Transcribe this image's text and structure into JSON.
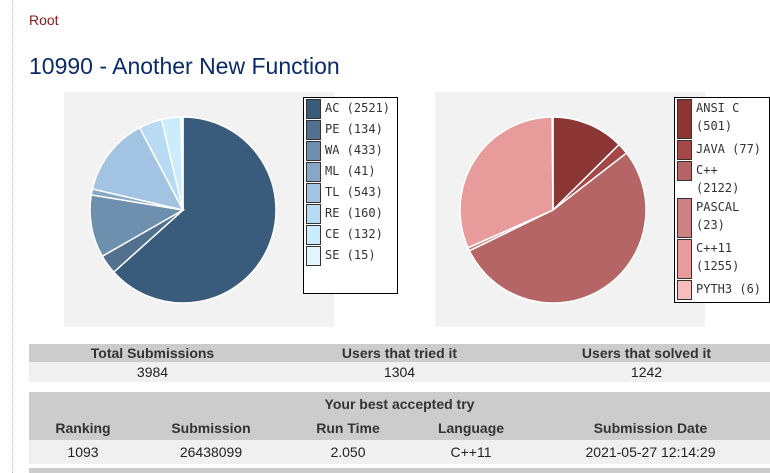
{
  "breadcrumb": "Root",
  "title": "10990 - Another New Function",
  "chart_data": [
    {
      "type": "pie",
      "legend_position": "right",
      "slices": [
        {
          "label": "AC",
          "value": 2521,
          "color": "#3a5c7c"
        },
        {
          "label": "PE",
          "value": 134,
          "color": "#52718f"
        },
        {
          "label": "WA",
          "value": 433,
          "color": "#6e90af"
        },
        {
          "label": "ML",
          "value": 41,
          "color": "#87a7c6"
        },
        {
          "label": "TL",
          "value": 543,
          "color": "#a2c3e1"
        },
        {
          "label": "RE",
          "value": 160,
          "color": "#b8dbf4"
        },
        {
          "label": "CE",
          "value": 132,
          "color": "#cbecfb"
        },
        {
          "label": "SE",
          "value": 15,
          "color": "#e3f6fd"
        }
      ]
    },
    {
      "type": "pie",
      "legend_position": "right",
      "slices": [
        {
          "label": "ANSI C",
          "value": 501,
          "color": "#8b3535"
        },
        {
          "label": "JAVA",
          "value": 77,
          "color": "#a34747"
        },
        {
          "label": "C++",
          "value": 2122,
          "color": "#b56565"
        },
        {
          "label": "PASCAL",
          "value": 23,
          "color": "#cc8282"
        },
        {
          "label": "C++11",
          "value": 1255,
          "color": "#e89b9b"
        },
        {
          "label": "PYTH3",
          "value": 6,
          "color": "#f7bcbc"
        }
      ]
    }
  ],
  "legend1": [
    "AC (2521)",
    "PE (134)",
    "WA (433)",
    "ML (41)",
    "TL (543)",
    "RE (160)",
    "CE (132)",
    "SE (15)"
  ],
  "legend2": [
    "ANSI C\n(501)",
    "JAVA (77)",
    "C++ (2122)",
    "PASCAL\n(23)",
    "C++11\n(1255)",
    "PYTH3 (6)"
  ],
  "stats": {
    "headers": [
      "Total Submissions",
      "Users that tried it",
      "Users that solved it"
    ],
    "values": [
      "3984",
      "1304",
      "1242"
    ]
  },
  "best": {
    "title": "Your best accepted try",
    "headers": [
      "Ranking",
      "Submission",
      "Run Time",
      "Language",
      "Submission Date"
    ],
    "values": [
      "1093",
      "26438099",
      "2.050",
      "C++11",
      "2021-05-27 12:14:29"
    ]
  }
}
